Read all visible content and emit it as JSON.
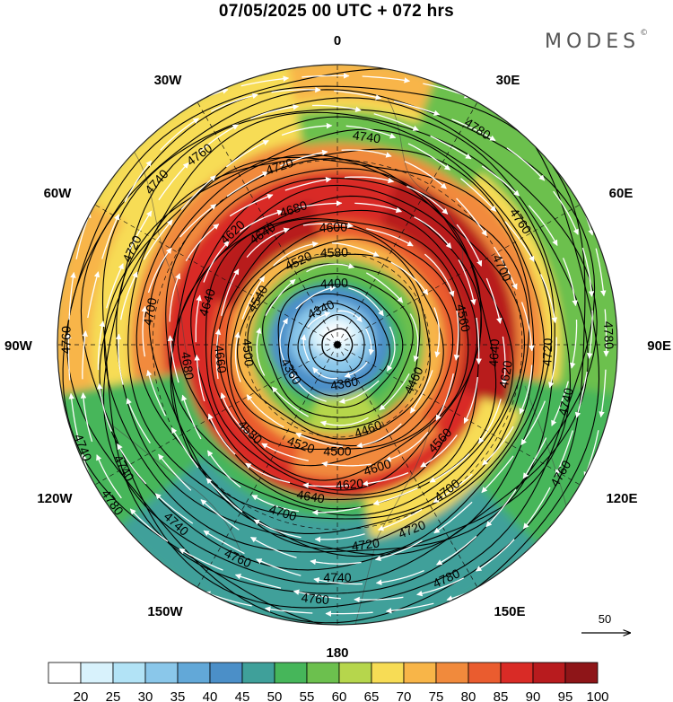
{
  "title": "07/05/2025  00 UTC  + 072 hrs",
  "brand": "MODES",
  "brand_mark": "©",
  "longitude_labels": {
    "top": "0",
    "bottom": "180",
    "left": "90W",
    "right": "90E",
    "upper_left": "30W",
    "upper_right": "30E",
    "mid_left": "60W",
    "mid_right": "60E",
    "lower_left": "120W",
    "lower_right": "120E",
    "bottom_left": "150W",
    "bottom_right": "150E"
  },
  "reference_vector": {
    "label": "50"
  },
  "colorbar": {
    "labels": [
      "20",
      "25",
      "30",
      "35",
      "40",
      "45",
      "50",
      "55",
      "60",
      "65",
      "70",
      "75",
      "80",
      "85",
      "90",
      "95",
      "100"
    ],
    "colors": [
      "#ffffff",
      "#d8f2fc",
      "#b2e3f6",
      "#8ac7ea",
      "#62a8d8",
      "#4b8fc8",
      "#3fa09a",
      "#46b65a",
      "#6cc04e",
      "#b6d64c",
      "#f7dc55",
      "#f8b548",
      "#f18a3c",
      "#ea5c2f",
      "#d92b26",
      "#b81b1e",
      "#8e1518"
    ]
  },
  "contour_labels": [
    {
      "text": "4740",
      "lon": 8,
      "r": 0.75
    },
    {
      "text": "4760",
      "lon": -36,
      "r": 0.84
    },
    {
      "text": "4720",
      "lon": -18,
      "r": 0.67
    },
    {
      "text": "4680",
      "lon": -18,
      "r": 0.51
    },
    {
      "text": "4640",
      "lon": -34,
      "r": 0.48
    },
    {
      "text": "4600",
      "lon": -2,
      "r": 0.42
    },
    {
      "text": "4580",
      "lon": -2,
      "r": 0.33
    },
    {
      "text": "4520",
      "lon": -25,
      "r": 0.33
    },
    {
      "text": "4400",
      "lon": -3,
      "r": 0.22
    },
    {
      "text": "4340",
      "lon": -25,
      "r": 0.14
    },
    {
      "text": "4360",
      "lon": -120,
      "r": 0.19
    },
    {
      "text": "4360",
      "lon": 170,
      "r": 0.14
    },
    {
      "text": "4500",
      "lon": -95,
      "r": 0.32
    },
    {
      "text": "4540",
      "lon": -60,
      "r": 0.33
    },
    {
      "text": "4620",
      "lon": -43,
      "r": 0.55
    },
    {
      "text": "4640",
      "lon": -72,
      "r": 0.49
    },
    {
      "text": "4680",
      "lon": -98,
      "r": 0.54
    },
    {
      "text": "4700",
      "lon": -80,
      "r": 0.68
    },
    {
      "text": "4720",
      "lon": -65,
      "r": 0.81
    },
    {
      "text": "4740",
      "lon": -48,
      "r": 0.87
    },
    {
      "text": "4760",
      "lon": -89,
      "r": 0.97
    },
    {
      "text": "4660",
      "lon": -97,
      "r": 0.42
    },
    {
      "text": "4780",
      "lon": 33,
      "r": 0.92
    },
    {
      "text": "4760",
      "lon": 56,
      "r": 0.79
    },
    {
      "text": "4700",
      "lon": 65,
      "r": 0.65
    },
    {
      "text": "4560",
      "lon": 78,
      "r": 0.46
    },
    {
      "text": "4640",
      "lon": 93,
      "r": 0.56
    },
    {
      "text": "4720",
      "lon": 92,
      "r": 0.75
    },
    {
      "text": "4780",
      "lon": 88,
      "r": 0.97
    },
    {
      "text": "4740",
      "lon": 104,
      "r": 0.84
    },
    {
      "text": "4620",
      "lon": 100,
      "r": 0.61
    },
    {
      "text": "4460",
      "lon": 115,
      "r": 0.3
    },
    {
      "text": "4560",
      "lon": 133,
      "r": 0.5
    },
    {
      "text": "4760",
      "lon": 120,
      "r": 0.92
    },
    {
      "text": "4700",
      "lon": 143,
      "r": 0.65
    },
    {
      "text": "4460",
      "lon": 160,
      "r": 0.32
    },
    {
      "text": "4600",
      "lon": 162,
      "r": 0.46
    },
    {
      "text": "4620",
      "lon": 175,
      "r": 0.5
    },
    {
      "text": "4500",
      "lon": 180,
      "r": 0.38
    },
    {
      "text": "4520",
      "lon": -160,
      "r": 0.38
    },
    {
      "text": "4580",
      "lon": -135,
      "r": 0.44
    },
    {
      "text": "4640",
      "lon": -170,
      "r": 0.55
    },
    {
      "text": "4700",
      "lon": -162,
      "r": 0.63
    },
    {
      "text": "4720",
      "lon": 172,
      "r": 0.72
    },
    {
      "text": "4720",
      "lon": 158,
      "r": 0.71
    },
    {
      "text": "4740",
      "lon": 180,
      "r": 0.83
    },
    {
      "text": "4740",
      "lon": -120,
      "r": 0.88
    },
    {
      "text": "4760",
      "lon": -155,
      "r": 0.84
    },
    {
      "text": "4760",
      "lon": -175,
      "r": 0.91
    },
    {
      "text": "4780",
      "lon": 155,
      "r": 0.92
    },
    {
      "text": "4740",
      "lon": -138,
      "r": 0.86
    },
    {
      "text": "4780",
      "lon": -125,
      "r": 0.98
    },
    {
      "text": "4740",
      "lon": -112,
      "r": 0.98
    }
  ]
}
